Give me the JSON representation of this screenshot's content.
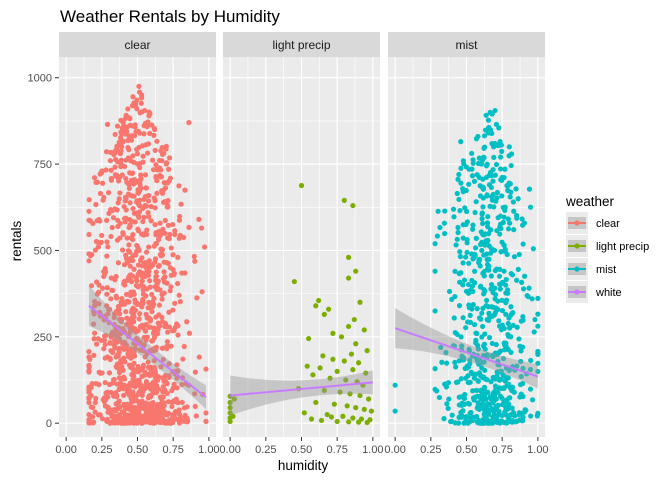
{
  "chart_data": {
    "type": "scatter",
    "title": "Weather Rentals by Humidity",
    "xlabel": "humidity",
    "ylabel": "rentals",
    "xlim": [
      0,
      1
    ],
    "ylim": [
      0,
      1000
    ],
    "x_ticks": [
      0,
      0.25,
      0.5,
      0.75,
      1
    ],
    "x_tick_labels": [
      "0.00",
      "0.25",
      "0.50",
      "0.75",
      "1.00"
    ],
    "y_ticks": [
      0,
      250,
      500,
      750,
      1000
    ],
    "y_tick_labels": [
      "0",
      "250",
      "500",
      "750",
      "1000"
    ],
    "grid": true,
    "facets": [
      "clear",
      "light precip",
      "mist"
    ],
    "legend": {
      "title": "weather",
      "placement": "right",
      "entries": [
        {
          "label": "clear",
          "color": "#F8766D"
        },
        {
          "label": "light precip",
          "color": "#7CAE00"
        },
        {
          "label": "mist",
          "color": "#00BFC4"
        },
        {
          "label": "white",
          "color": "#C77CFF"
        }
      ]
    },
    "series": [
      {
        "name": "clear",
        "facet": "clear",
        "color": "#F8766D",
        "density": {
          "x_range": [
            0.16,
            0.98
          ],
          "x_mean": 0.5,
          "x_sd": 0.17,
          "y_max": 980,
          "approx_count": 1200
        },
        "sample_points": [
          [
            0.51,
            975
          ],
          [
            0.47,
            920
          ],
          [
            0.55,
            905
          ],
          [
            0.58,
            890
          ],
          [
            0.4,
            870
          ],
          [
            0.86,
            870
          ],
          [
            0.29,
            865
          ],
          [
            0.36,
            860
          ],
          [
            0.62,
            850
          ],
          [
            0.93,
            590
          ],
          [
            0.97,
            510
          ],
          [
            0.98,
            5
          ],
          [
            0.86,
            110
          ],
          [
            0.9,
            85
          ],
          [
            0.2,
            340
          ],
          [
            0.24,
            310
          ]
        ],
        "trend": {
          "x": [
            0.16,
            0.98
          ],
          "y": [
            340,
            75
          ]
        }
      },
      {
        "name": "light precip",
        "facet": "light precip",
        "color": "#7CAE00",
        "points": [
          [
            0.5,
            688
          ],
          [
            0.8,
            645
          ],
          [
            0.86,
            630
          ],
          [
            0.83,
            480
          ],
          [
            0.45,
            410
          ],
          [
            0.88,
            440
          ],
          [
            0.83,
            420
          ],
          [
            0.6,
            340
          ],
          [
            0.62,
            355
          ],
          [
            0.91,
            350
          ],
          [
            0.69,
            330
          ],
          [
            0.66,
            315
          ],
          [
            0.87,
            300
          ],
          [
            0.83,
            280
          ],
          [
            0.94,
            270
          ],
          [
            0.72,
            260
          ],
          [
            0.55,
            245
          ],
          [
            0.78,
            250
          ],
          [
            0.88,
            230
          ],
          [
            0.96,
            210
          ],
          [
            0.65,
            195
          ],
          [
            0.85,
            200
          ],
          [
            0.72,
            185
          ],
          [
            0.8,
            180
          ],
          [
            0.9,
            175
          ],
          [
            0.54,
            165
          ],
          [
            0.63,
            160
          ],
          [
            0.75,
            150
          ],
          [
            0.86,
            155
          ],
          [
            0.95,
            145
          ],
          [
            0.58,
            140
          ],
          [
            0.7,
            130
          ],
          [
            0.81,
            125
          ],
          [
            0.89,
            120
          ],
          [
            0.93,
            110
          ],
          [
            0.48,
            100
          ],
          [
            0.66,
            95
          ],
          [
            0.77,
            90
          ],
          [
            0.84,
            85
          ],
          [
            0.91,
            80
          ],
          [
            0.97,
            70
          ],
          [
            0.6,
            60
          ],
          [
            0.73,
            55
          ],
          [
            0.82,
            50
          ],
          [
            0.88,
            45
          ],
          [
            0.94,
            40
          ],
          [
            0.52,
            30
          ],
          [
            0.68,
            25
          ],
          [
            0.79,
            20
          ],
          [
            0.86,
            15
          ],
          [
            0.92,
            12
          ],
          [
            0.98,
            10
          ],
          [
            0.64,
            8
          ],
          [
            0.75,
            5
          ],
          [
            0.83,
            4
          ],
          [
            0.9,
            3
          ],
          [
            0.96,
            2
          ],
          [
            0.57,
            12
          ],
          [
            0.71,
            18
          ],
          [
            0.99,
            35
          ],
          [
            0.0,
            78
          ],
          [
            0.0,
            60
          ],
          [
            0.0,
            45
          ],
          [
            0.0,
            30
          ],
          [
            0.0,
            15
          ],
          [
            0.0,
            5
          ],
          [
            0.02,
            20
          ],
          [
            0.03,
            70
          ]
        ],
        "trend": {
          "x": [
            0,
            1
          ],
          "y": [
            80,
            118
          ]
        }
      },
      {
        "name": "mist",
        "facet": "mist",
        "color": "#00BFC4",
        "density": {
          "x_range": [
            0.28,
            1.0
          ],
          "x_mean": 0.66,
          "x_sd": 0.14,
          "y_max": 910,
          "approx_count": 700
        },
        "sample_points": [
          [
            0.7,
            905
          ],
          [
            0.68,
            895
          ],
          [
            0.58,
            830
          ],
          [
            0.46,
            815
          ],
          [
            0.69,
            800
          ],
          [
            0.8,
            800
          ],
          [
            0.62,
            770
          ],
          [
            0.77,
            735
          ],
          [
            0.74,
            705
          ],
          [
            0.64,
            745
          ],
          [
            0.0,
            110
          ],
          [
            0.0,
            35
          ],
          [
            0.96,
            360
          ],
          [
            0.98,
            300
          ]
        ],
        "trend": {
          "x": [
            0,
            1
          ],
          "y": [
            275,
            135
          ]
        }
      }
    ]
  }
}
